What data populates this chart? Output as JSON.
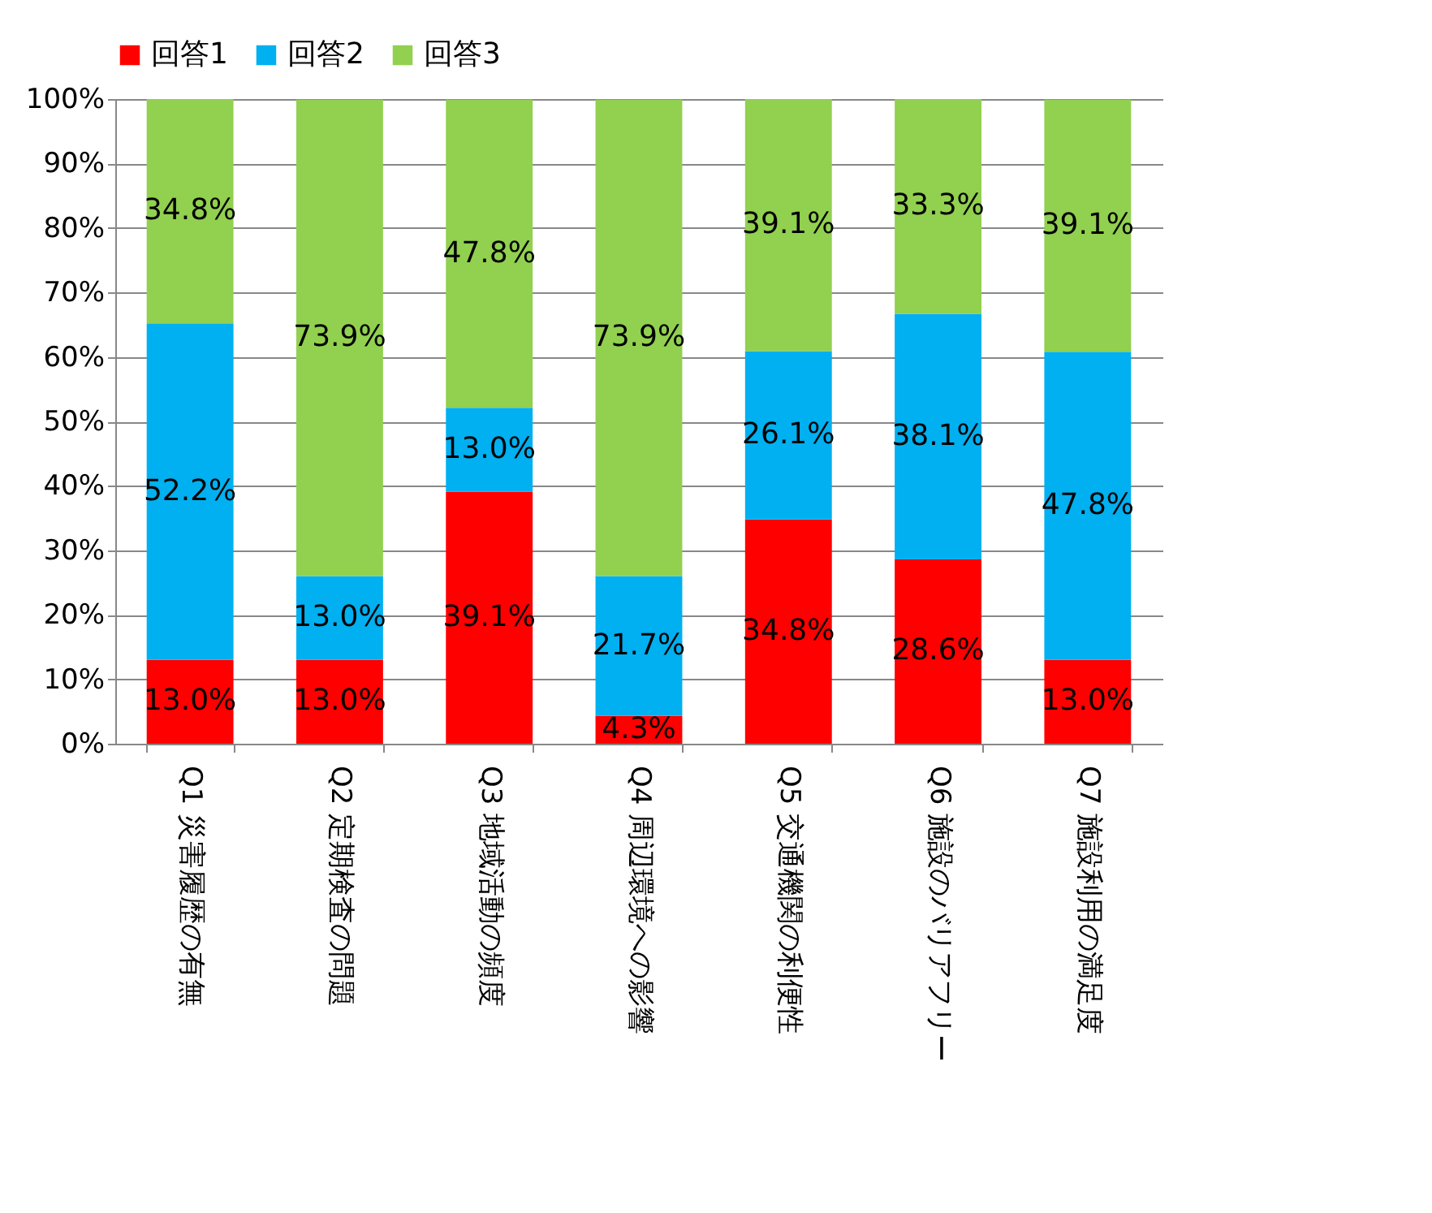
{
  "chart_data": {
    "type": "bar",
    "stacked": true,
    "categories": [
      "Q1 災害履歴の有無",
      "Q2 定期検査の問題",
      "Q3 地域活動の頻度",
      "Q4 周辺環境への影響",
      "Q5 交通機関の利便性",
      "Q6 施設のバリアフリー",
      "Q7 施設利用の満足度"
    ],
    "series": [
      {
        "name": "回答1",
        "color": "#ff0000",
        "values": [
          13.0,
          13.0,
          39.1,
          4.3,
          34.8,
          28.6,
          13.0
        ],
        "value_labels": [
          "13.0%",
          "13.0%",
          "39.1%",
          "4.3%",
          "34.8%",
          "28.6%",
          "13.0%"
        ]
      },
      {
        "name": "回答2",
        "color": "#00b0f0",
        "values": [
          52.2,
          13.0,
          13.0,
          21.7,
          26.1,
          38.1,
          47.8
        ],
        "value_labels": [
          "52.2%",
          "13.0%",
          "13.0%",
          "21.7%",
          "26.1%",
          "38.1%",
          "47.8%"
        ]
      },
      {
        "name": "回答3",
        "color": "#92d050",
        "values": [
          34.8,
          73.9,
          47.8,
          73.9,
          39.1,
          33.3,
          39.1
        ],
        "value_labels": [
          "34.8%",
          "73.9%",
          "47.8%",
          "73.9%",
          "39.1%",
          "33.3%",
          "39.1%"
        ]
      }
    ],
    "ylim": [
      0,
      100
    ],
    "yticks": [
      {
        "value": 0,
        "label": "0%"
      },
      {
        "value": 10,
        "label": "10%"
      },
      {
        "value": 20,
        "label": "20%"
      },
      {
        "value": 30,
        "label": "30%"
      },
      {
        "value": 40,
        "label": "40%"
      },
      {
        "value": 50,
        "label": "50%"
      },
      {
        "value": 60,
        "label": "60%"
      },
      {
        "value": 70,
        "label": "70%"
      },
      {
        "value": 80,
        "label": "80%"
      },
      {
        "value": 90,
        "label": "90%"
      },
      {
        "value": 100,
        "label": "100%"
      }
    ],
    "grid": "y",
    "legend": "top"
  }
}
